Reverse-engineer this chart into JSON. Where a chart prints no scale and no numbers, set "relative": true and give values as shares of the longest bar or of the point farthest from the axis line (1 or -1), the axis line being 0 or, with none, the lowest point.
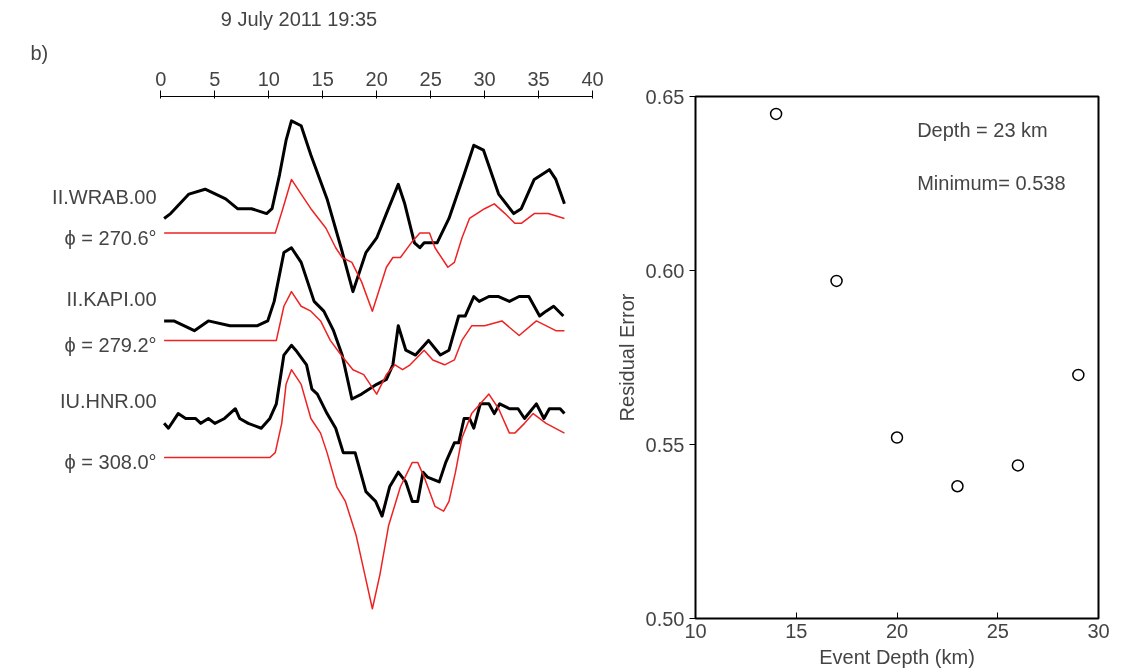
{
  "chart_data": [
    {
      "type": "line",
      "relative": true,
      "title": "9 July 2011 19:35",
      "annotations": [
        "b)",
        "ϕ = 270.6°",
        "ϕ = 279.2°",
        "ϕ = 308.0°"
      ],
      "xlim": [
        0,
        40
      ],
      "xticks": [
        0,
        5,
        10,
        15,
        20,
        25,
        30,
        35,
        40
      ],
      "tick_labels": "x",
      "grid": false,
      "marker": "none",
      "line_style": "solid",
      "series": [
        {
          "name": "II.WRAB.00",
          "color": "#000000",
          "x": [
            0.3,
            0.9,
            2.6,
            4.1,
            6.0,
            7.1,
            8.4,
            9.8,
            10.3,
            11.0,
            11.6,
            12.1,
            13.0,
            13.9,
            15.4,
            16.7,
            17.8,
            19.0,
            20.0,
            20.9,
            22.0,
            22.6,
            23.5,
            24.0,
            24.4,
            25.6,
            26.7,
            28.1,
            29.0,
            29.9,
            31.3,
            32.7,
            33.4,
            34.6,
            36.0,
            36.6,
            37.4
          ],
          "values": [
            0.8,
            0.81,
            0.85,
            0.86,
            0.84,
            0.82,
            0.82,
            0.81,
            0.82,
            0.89,
            0.96,
            1.0,
            0.99,
            0.93,
            0.84,
            0.74,
            0.65,
            0.73,
            0.76,
            0.81,
            0.87,
            0.83,
            0.75,
            0.74,
            0.75,
            0.75,
            0.8,
            0.89,
            0.95,
            0.94,
            0.85,
            0.81,
            0.82,
            0.88,
            0.9,
            0.88,
            0.83
          ]
        },
        {
          "color": "#ee2222",
          "x": [
            0.3,
            10.3,
            10.6,
            11.3,
            12.1,
            13.0,
            13.9,
            15.3,
            16.2,
            16.8,
            17.7,
            18.6,
            19.6,
            20.9,
            21.5,
            22.2,
            23.2,
            24.0,
            24.9,
            25.4,
            26.6,
            27.2,
            27.9,
            28.6,
            30.0,
            30.9,
            31.9,
            32.8,
            33.4,
            34.6,
            35.9,
            37.4
          ],
          "values": [
            0.77,
            0.77,
            0.77,
            0.82,
            0.88,
            0.85,
            0.82,
            0.78,
            0.74,
            0.72,
            0.71,
            0.67,
            0.61,
            0.7,
            0.72,
            0.72,
            0.75,
            0.77,
            0.77,
            0.74,
            0.7,
            0.71,
            0.76,
            0.8,
            0.82,
            0.83,
            0.81,
            0.79,
            0.79,
            0.81,
            0.81,
            0.8
          ]
        },
        {
          "name": "II.KAPI.00",
          "color": "#000000",
          "x": [
            0.3,
            1.2,
            3.1,
            4.4,
            6.4,
            8.0,
            8.9,
            9.9,
            10.5,
            11.4,
            12.1,
            13.0,
            14.2,
            15.1,
            16.0,
            16.8,
            17.1,
            17.7,
            18.6,
            20.0,
            20.9,
            21.5,
            22.0,
            22.7,
            23.6,
            24.8,
            25.9,
            26.7,
            27.6,
            28.2,
            29.0,
            29.5,
            30.4,
            31.3,
            32.3,
            33.2,
            34.1,
            35.1,
            35.7,
            36.4,
            37.3
          ],
          "values": [
            0.59,
            0.59,
            0.57,
            0.59,
            0.58,
            0.58,
            0.58,
            0.59,
            0.63,
            0.73,
            0.74,
            0.71,
            0.63,
            0.61,
            0.57,
            0.52,
            0.49,
            0.43,
            0.44,
            0.46,
            0.47,
            0.5,
            0.58,
            0.53,
            0.52,
            0.55,
            0.52,
            0.53,
            0.6,
            0.6,
            0.64,
            0.63,
            0.64,
            0.64,
            0.63,
            0.64,
            0.64,
            0.6,
            0.61,
            0.62,
            0.6
          ]
        },
        {
          "color": "#ee2222",
          "x": [
            0.3,
            10.3,
            10.7,
            11.4,
            12.1,
            13.0,
            13.9,
            14.8,
            15.7,
            16.7,
            17.8,
            18.8,
            20.0,
            20.9,
            21.7,
            22.4,
            23.1,
            24.4,
            25.2,
            26.3,
            27.2,
            27.9,
            28.8,
            30.0,
            31.6,
            33.2,
            34.8,
            36.6,
            37.4
          ],
          "values": [
            0.55,
            0.55,
            0.55,
            0.62,
            0.65,
            0.62,
            0.61,
            0.59,
            0.55,
            0.52,
            0.49,
            0.48,
            0.44,
            0.48,
            0.5,
            0.49,
            0.5,
            0.53,
            0.51,
            0.5,
            0.51,
            0.55,
            0.58,
            0.58,
            0.59,
            0.56,
            0.59,
            0.57,
            0.57
          ]
        },
        {
          "name": "IU.HNR.00",
          "color": "#000000",
          "x": [
            0.3,
            0.7,
            1.6,
            2.3,
            3.2,
            3.7,
            4.4,
            5.0,
            5.9,
            6.9,
            7.3,
            8.1,
            9.3,
            10.1,
            10.7,
            11.4,
            12.1,
            12.5,
            13.5,
            14.0,
            14.5,
            15.4,
            16.2,
            16.9,
            17.6,
            18.0,
            19.0,
            19.9,
            20.5,
            21.2,
            22.0,
            22.7,
            23.3,
            23.8,
            24.3,
            24.7,
            25.8,
            26.4,
            27.2,
            27.6,
            28.1,
            28.6,
            29.0,
            29.6,
            30.4,
            30.9,
            31.4,
            32.3,
            33.1,
            33.7,
            34.8,
            35.5,
            36.0,
            36.4,
            37.0,
            37.4
          ],
          "values": [
            0.38,
            0.37,
            0.4,
            0.39,
            0.39,
            0.38,
            0.39,
            0.38,
            0.39,
            0.41,
            0.39,
            0.38,
            0.37,
            0.39,
            0.42,
            0.52,
            0.54,
            0.53,
            0.5,
            0.45,
            0.44,
            0.4,
            0.37,
            0.32,
            0.32,
            0.32,
            0.24,
            0.22,
            0.19,
            0.25,
            0.28,
            0.26,
            0.22,
            0.22,
            0.28,
            0.27,
            0.26,
            0.3,
            0.34,
            0.34,
            0.39,
            0.39,
            0.37,
            0.42,
            0.42,
            0.4,
            0.42,
            0.41,
            0.41,
            0.39,
            0.42,
            0.39,
            0.41,
            0.41,
            0.41,
            0.4
          ]
        },
        {
          "color": "#ee2222",
          "x": [
            0.3,
            10.1,
            10.6,
            11.2,
            11.6,
            12.1,
            13.0,
            13.9,
            14.8,
            15.4,
            16.3,
            17.1,
            18.1,
            18.9,
            19.6,
            20.3,
            21.1,
            22.2,
            23.3,
            23.8,
            24.4,
            25.4,
            26.2,
            26.7,
            27.3,
            27.9,
            28.8,
            30.4,
            31.3,
            32.3,
            32.8,
            33.7,
            34.5,
            35.7,
            37.4
          ],
          "values": [
            0.31,
            0.31,
            0.32,
            0.38,
            0.46,
            0.49,
            0.46,
            0.39,
            0.36,
            0.32,
            0.25,
            0.22,
            0.15,
            0.07,
            0,
            0.07,
            0.17,
            0.25,
            0.3,
            0.3,
            0.27,
            0.21,
            0.2,
            0.22,
            0.28,
            0.35,
            0.4,
            0.44,
            0.41,
            0.36,
            0.36,
            0.38,
            0.4,
            0.38,
            0.36
          ]
        }
      ]
    },
    {
      "type": "scatter",
      "xlabel": "Event Depth (km)",
      "ylabel": "Residual Error",
      "annotations": [
        "Depth = 23 km",
        "Minimum= 0.538"
      ],
      "x": [
        14,
        17,
        20,
        23,
        26,
        29
      ],
      "values": [
        0.645,
        0.597,
        0.552,
        0.538,
        0.544,
        0.57
      ],
      "color": "#000000",
      "marker": "circle",
      "xlim": [
        10,
        30
      ],
      "xticks": [
        10,
        15,
        20,
        25,
        30
      ],
      "ylim": [
        0.5,
        0.65
      ],
      "yticks": [
        {
          "value": 0.5,
          "label": "0.50"
        },
        {
          "value": 0.55,
          "label": "0.55"
        },
        {
          "value": 0.6,
          "label": "0.60"
        },
        {
          "value": 0.65,
          "label": "0.65"
        }
      ],
      "grid": false
    }
  ]
}
